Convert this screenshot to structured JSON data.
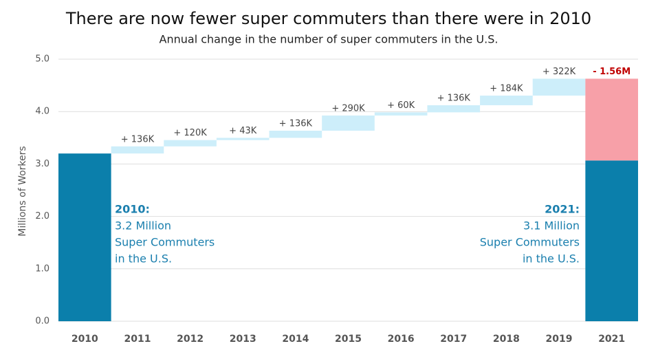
{
  "chart_data": {
    "type": "waterfall",
    "title": "There are now fewer super commuters than there were in 2010",
    "subtitle": "Annual change in the number of super commuters in the U.S.",
    "y_label": "Millions of Workers",
    "categories": [
      "2010",
      "2011",
      "2012",
      "2013",
      "2014",
      "2015",
      "2016",
      "2017",
      "2018",
      "2019",
      "2021"
    ],
    "values": [
      3.2,
      0.136,
      0.12,
      0.043,
      0.136,
      0.29,
      0.06,
      0.136,
      0.184,
      0.322,
      -1.56
    ],
    "value_labels": [
      null,
      "+ 136K",
      "+ 120K",
      "+ 43K",
      "+ 136K",
      "+ 290K",
      "+ 60K",
      "+ 136K",
      "+ 184K",
      "+ 322K",
      "- 1.56M"
    ],
    "colors": {
      "total": "#0b7fab",
      "increase": "#cdeefa",
      "decrease": "#f7a0a8"
    },
    "ylim": [
      0,
      5
    ],
    "yticks": [
      {
        "value": 0,
        "label": "0.0"
      },
      {
        "value": 1,
        "label": "1.0"
      },
      {
        "value": 2,
        "label": "2.0"
      },
      {
        "value": 3,
        "label": "3.0"
      },
      {
        "value": 4,
        "label": "4.0"
      },
      {
        "value": 5,
        "label": "5.0"
      }
    ],
    "grid": true,
    "annotations": [
      {
        "lines": [
          "2010:",
          "3.2 Million",
          "Super Commuters",
          "in the U.S."
        ]
      },
      {
        "lines": [
          "2021:",
          "3.1 Million",
          "Super Commuters",
          "in the U.S."
        ]
      }
    ]
  }
}
